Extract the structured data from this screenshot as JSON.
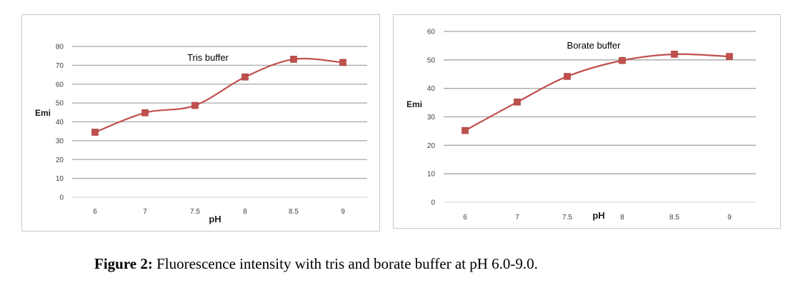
{
  "chart_data": [
    {
      "type": "line",
      "title": "Tris buffer",
      "xlabel": "pH",
      "ylabel": "Emi",
      "categories": [
        "6",
        "7",
        "7.5",
        "8",
        "8.5",
        "9"
      ],
      "series": [
        {
          "values": [
            34.5,
            44.8,
            48.7,
            63.8,
            73.2,
            71.5
          ]
        }
      ],
      "ylim": [
        0,
        80
      ],
      "yticks": [
        "0",
        "10",
        "20",
        "30",
        "40",
        "50",
        "60",
        "70",
        "80"
      ],
      "grid": true,
      "line_color": "#c0504d",
      "marker_color": "#c0504d"
    },
    {
      "type": "line",
      "title": "Borate buffer",
      "xlabel": "pH",
      "ylabel": "Emi",
      "categories": [
        "6",
        "7",
        "7.5",
        "8",
        "8.5",
        "9"
      ],
      "series": [
        {
          "values": [
            25.2,
            35.2,
            44.2,
            49.8,
            52.0,
            51.2
          ]
        }
      ],
      "ylim": [
        0,
        60
      ],
      "yticks": [
        "0",
        "10",
        "20",
        "30",
        "40",
        "50",
        "60"
      ],
      "grid": true,
      "line_color": "#c0504d",
      "marker_color": "#c0504d"
    }
  ],
  "caption": {
    "label": "Figure 2:",
    "text": " Fluorescence intensity with tris and borate buffer at pH 6.0-9.0."
  }
}
